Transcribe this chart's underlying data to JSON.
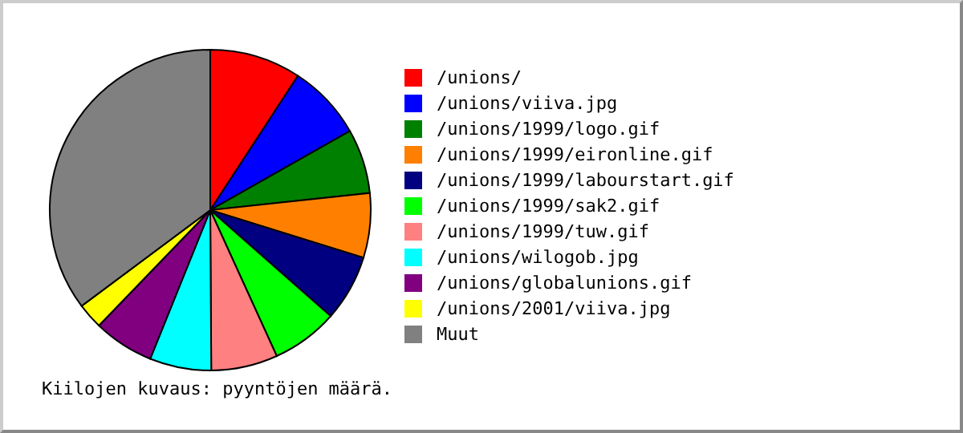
{
  "chart_data": {
    "type": "pie",
    "categories": [
      "/unions/",
      "/unions/viiva.jpg",
      "/unions/1999/logo.gif",
      "/unions/1999/eironline.gif",
      "/unions/1999/labourstart.gif",
      "/unions/1999/sak2.gif",
      "/unions/1999/tuw.gif",
      "/unions/wilogob.jpg",
      "/unions/globalunions.gif",
      "/unions/2001/viiva.jpg",
      "Muut"
    ],
    "values": [
      9.2,
      7.6,
      6.5,
      6.5,
      6.7,
      6.7,
      6.7,
      6.2,
      6.1,
      2.6,
      35.2
    ],
    "colors": [
      "#ff0000",
      "#0000ff",
      "#008000",
      "#ff8000",
      "#000080",
      "#00ff00",
      "#ff8080",
      "#00ffff",
      "#800080",
      "#ffff00",
      "#808080"
    ],
    "legend": "right",
    "annotations": [
      "Kiilojen kuvaus: pyyntöjen määrä."
    ]
  }
}
